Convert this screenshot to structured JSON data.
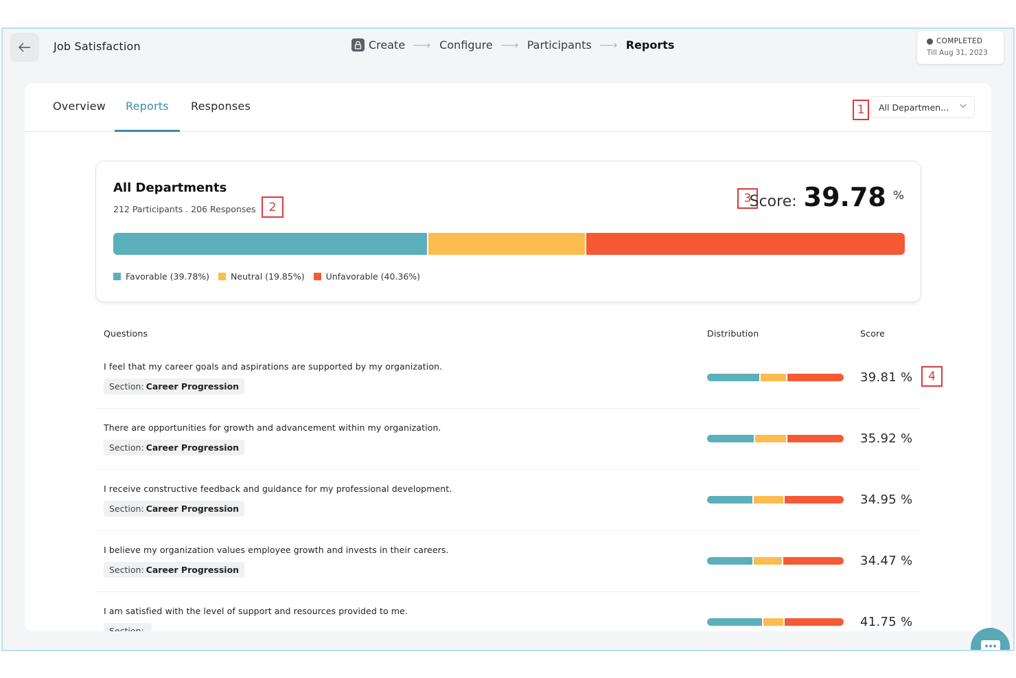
{
  "header": {
    "title": "Job Satisfaction",
    "steps": [
      {
        "label": "Create"
      },
      {
        "label": "Configure"
      },
      {
        "label": "Participants"
      },
      {
        "label": "Reports"
      }
    ],
    "status": {
      "label": "COMPLETED",
      "date": "Till Aug 31, 2023"
    }
  },
  "tabs": [
    {
      "label": "Overview"
    },
    {
      "label": "Reports"
    },
    {
      "label": "Responses"
    }
  ],
  "filter": {
    "value": "All Departmen..."
  },
  "markers": [
    "1",
    "2",
    "3",
    "4"
  ],
  "summary": {
    "title": "All Departments",
    "subtitle": "212 Participants . 206 Responses",
    "score_label": "Score:",
    "score_value": "39.78",
    "score_unit": "%",
    "distribution": [
      39.78,
      19.85,
      40.36
    ],
    "legend": [
      {
        "label": "Favorable (39.78%)"
      },
      {
        "label": "Neutral (19.85%)"
      },
      {
        "label": "Unfavorable (40.36%)"
      }
    ]
  },
  "colors": {
    "favorable": "#5bb0bb",
    "neutral": "#fdbc4f",
    "unfavorable": "#f55a34",
    "accent": "#3b8ca6"
  },
  "table": {
    "headers": {
      "questions": "Questions",
      "distribution": "Distribution",
      "score": "Score"
    },
    "rows": [
      {
        "question": "I feel that my career goals and aspirations are supported by my organization.",
        "section_prefix": "Section:",
        "section": "Career Progression",
        "score": "39.81 %",
        "dist": [
          39,
          19,
          42
        ]
      },
      {
        "question": "There are opportunities for growth and advancement within my organization.",
        "section_prefix": "Section:",
        "section": "Career Progression",
        "score": "35.92 %",
        "dist": [
          35,
          23,
          42
        ]
      },
      {
        "question": "I receive constructive feedback and guidance for my professional development.",
        "section_prefix": "Section:",
        "section": "Career Progression",
        "score": "34.95 %",
        "dist": [
          34,
          22,
          44
        ]
      },
      {
        "question": "I believe my organization values employee growth and invests in their careers.",
        "section_prefix": "Section:",
        "section": "Career Progression",
        "score": "34.47 %",
        "dist": [
          34,
          21,
          45
        ]
      },
      {
        "question": "I am satisfied with the level of support and resources provided to me.",
        "section_prefix": "Section:",
        "section": "",
        "score": "41.75 %",
        "dist": [
          41,
          15,
          44
        ]
      }
    ]
  }
}
